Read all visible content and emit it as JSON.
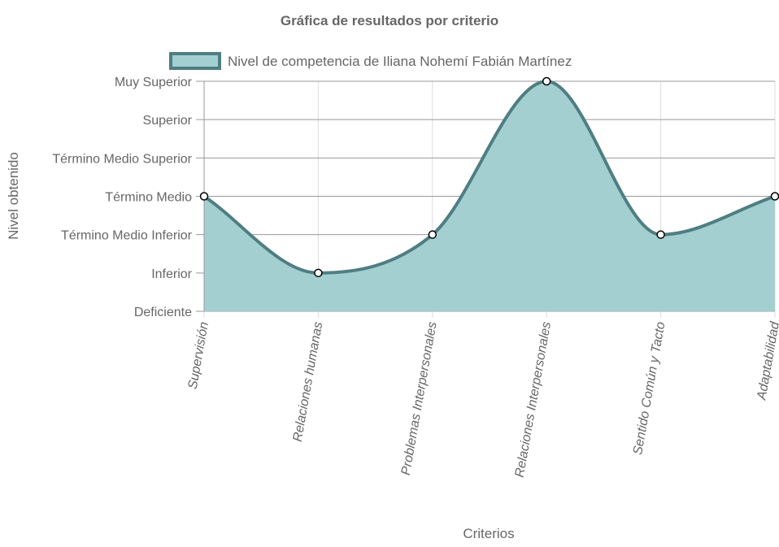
{
  "chart_data": {
    "type": "area",
    "title": "Gráfica de resultados por criterio",
    "xlabel": "Criterios",
    "ylabel": "Nivel obtenido",
    "levels": [
      "Deficiente",
      "Inferior",
      "Término Medio Inferior",
      "Término Medio",
      "Término Medio Superior",
      "Superior",
      "Muy Superior"
    ],
    "categories": [
      "Supervisión",
      "Relaciones humanas",
      "Problemas Interpersonales",
      "Relaciones Interpersonales",
      "Sentido Común y Tacto",
      "Adaptabilidad"
    ],
    "ylim": [
      0,
      6
    ],
    "grid": true,
    "legend_position": "top",
    "series": [
      {
        "name": "Nivel de competencia de Iliana Nohemí Fabián Martínez",
        "values": [
          3,
          1,
          2,
          6,
          2,
          3
        ],
        "fill_color": "#a3cfd1",
        "line_color": "#4f7e82"
      }
    ]
  }
}
